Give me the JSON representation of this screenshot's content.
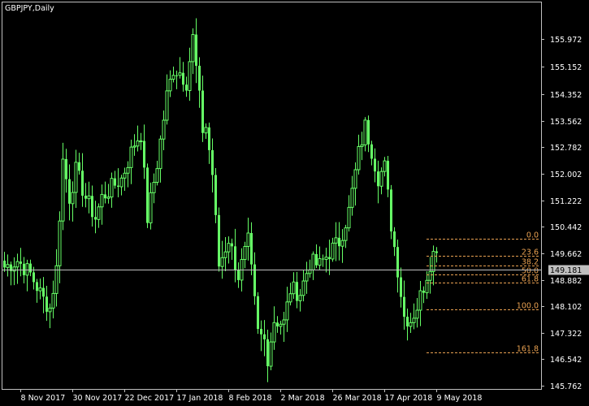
{
  "window": {
    "title": "GBPJPY,Daily"
  },
  "colors": {
    "background": "#000000",
    "frame": "#c0c0c0",
    "candle": "#66ff66",
    "bid_line": "#c0c0c0",
    "fib": "#e8a050",
    "price_tag_bg": "#c0c0c0",
    "price_tag_text": "#000000",
    "axis_text": "#ffffff"
  },
  "chart_data": {
    "type": "candlestick",
    "symbol": "GBPJPY",
    "timeframe": "Daily",
    "ylim": [
      145.98,
      156.71
    ],
    "price_ticks": [
      "155.972",
      "155.152",
      "154.352",
      "153.562",
      "152.782",
      "152.002",
      "151.222",
      "150.442",
      "149.662",
      "148.882",
      "148.102",
      "147.322",
      "146.542",
      "145.762"
    ],
    "date_ticks": [
      {
        "label": "8 Nov 2017",
        "bar": 6
      },
      {
        "label": "30 Nov 2017",
        "bar": 22
      },
      {
        "label": "22 Dec 2017",
        "bar": 38
      },
      {
        "label": "17 Jan 2018",
        "bar": 54
      },
      {
        "label": "8 Feb 2018",
        "bar": 70
      },
      {
        "label": "2 Mar 2018",
        "bar": 86
      },
      {
        "label": "26 Mar 2018",
        "bar": 102
      },
      {
        "label": "17 Apr 2018",
        "bar": 118
      },
      {
        "label": "9 May 2018",
        "bar": 134
      }
    ],
    "bars_total": 168,
    "first_bar": 0,
    "bid": {
      "value": 149.181,
      "label": "149.181"
    },
    "fibonacci": {
      "high": 150.08,
      "low": 148.02,
      "start_bar": 130,
      "levels": [
        {
          "label": "0.0",
          "ratio": 0.0
        },
        {
          "label": "23.6",
          "ratio": 0.236
        },
        {
          "label": "38.2",
          "ratio": 0.382
        },
        {
          "label": "50.0",
          "ratio": 0.5
        },
        {
          "label": "61.8",
          "ratio": 0.618
        },
        {
          "label": "100.0",
          "ratio": 1.0
        },
        {
          "label": "161.8",
          "ratio": 1.618
        }
      ]
    },
    "anchors": [
      [
        0,
        149.25
      ],
      [
        4,
        149.45
      ],
      [
        8,
        149.05
      ],
      [
        12,
        148.3
      ],
      [
        14,
        148.05
      ],
      [
        16,
        149.2
      ],
      [
        18,
        152.4
      ],
      [
        20,
        151.3
      ],
      [
        22,
        152.1
      ],
      [
        25,
        151.3
      ],
      [
        28,
        150.7
      ],
      [
        30,
        151.3
      ],
      [
        33,
        151.6
      ],
      [
        36,
        151.85
      ],
      [
        40,
        152.9
      ],
      [
        42,
        153.2
      ],
      [
        44,
        150.7
      ],
      [
        47,
        152.3
      ],
      [
        50,
        154.3
      ],
      [
        52,
        155.1
      ],
      [
        54,
        155.0
      ],
      [
        56,
        154.7
      ],
      [
        58,
        156.0
      ],
      [
        59,
        155.1
      ],
      [
        61,
        153.3
      ],
      [
        62,
        153.4
      ],
      [
        64,
        152.0
      ],
      [
        65,
        150.6
      ],
      [
        66,
        149.3
      ],
      [
        69,
        150.1
      ],
      [
        72,
        149.0
      ],
      [
        75,
        150.0
      ],
      [
        78,
        147.3
      ],
      [
        80,
        147.1
      ],
      [
        81,
        146.6
      ],
      [
        83,
        147.7
      ],
      [
        86,
        147.6
      ],
      [
        88,
        148.6
      ],
      [
        91,
        148.5
      ],
      [
        94,
        149.4
      ],
      [
        97,
        149.3
      ],
      [
        100,
        149.7
      ],
      [
        103,
        150.0
      ],
      [
        106,
        150.9
      ],
      [
        109,
        152.6
      ],
      [
        111,
        153.4
      ],
      [
        113,
        152.7
      ],
      [
        115,
        151.9
      ],
      [
        117,
        152.2
      ],
      [
        119,
        150.5
      ],
      [
        121,
        149.2
      ],
      [
        123,
        147.8
      ],
      [
        125,
        147.7
      ],
      [
        127,
        148.1
      ],
      [
        129,
        148.7
      ],
      [
        131,
        149.4
      ],
      [
        133,
        149.9
      ]
    ]
  }
}
